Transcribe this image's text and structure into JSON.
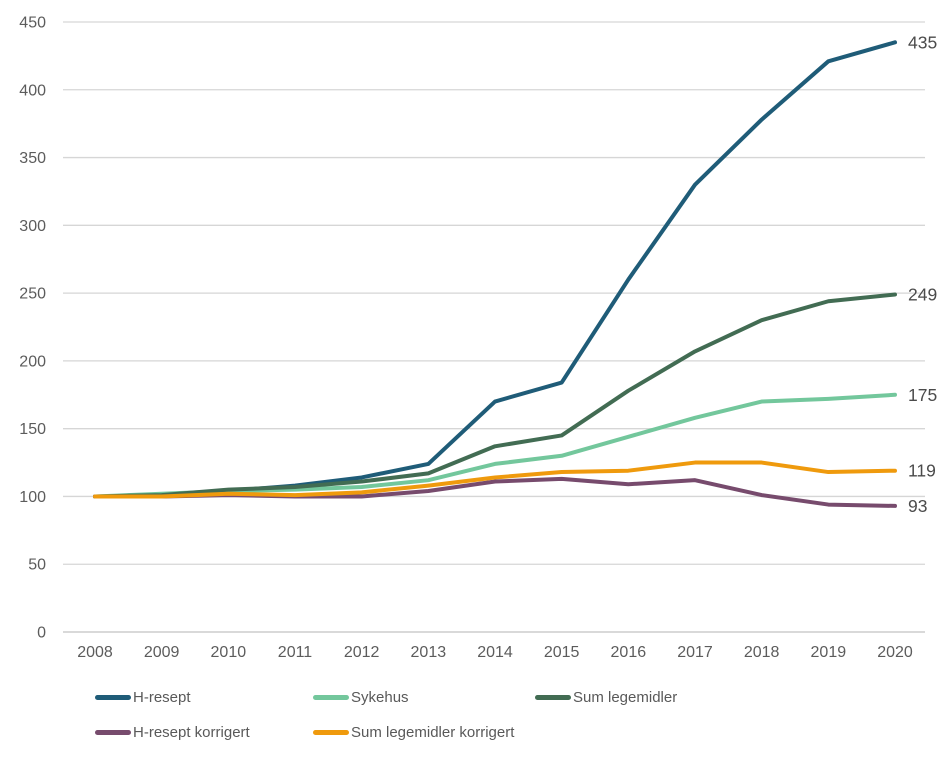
{
  "chart_data": {
    "type": "line",
    "title": "",
    "x": [
      2008,
      2009,
      2010,
      2011,
      2012,
      2013,
      2014,
      2015,
      2016,
      2017,
      2018,
      2019,
      2020
    ],
    "x_labels": [
      "2008",
      "2009",
      "2010",
      "2011",
      "2012",
      "2013",
      "2014",
      "2015",
      "2016",
      "2017",
      "2018",
      "2019",
      "2020"
    ],
    "ylim": [
      0,
      450
    ],
    "ytick_step": 50,
    "y_tick_labels": [
      "0",
      "50",
      "100",
      "150",
      "200",
      "250",
      "300",
      "350",
      "400",
      "450"
    ],
    "grid": true,
    "legend_position": "bottom",
    "series": [
      {
        "name": "H-resept",
        "color": "#1F5C78",
        "values": [
          100,
          100,
          104,
          108,
          114,
          124,
          170,
          184,
          260,
          330,
          378,
          421,
          435
        ],
        "end_label": "435"
      },
      {
        "name": "Sykehus",
        "color": "#73C79C",
        "values": [
          100,
          102,
          104,
          105,
          107,
          112,
          124,
          130,
          144,
          158,
          170,
          172,
          175
        ],
        "end_label": "175"
      },
      {
        "name": "Sum legemidler",
        "color": "#426C53",
        "values": [
          100,
          101,
          105,
          107,
          111,
          117,
          137,
          145,
          178,
          207,
          230,
          244,
          249
        ],
        "end_label": "249"
      },
      {
        "name": "H-resept korrigert",
        "color": "#774B6D",
        "values": [
          100,
          100,
          101,
          100,
          100,
          104,
          111,
          113,
          109,
          112,
          101,
          94,
          93
        ],
        "end_label": "93"
      },
      {
        "name": "Sum legemidler korrigert",
        "color": "#EF9A0D",
        "values": [
          100,
          100,
          102,
          101,
          103,
          108,
          114,
          118,
          119,
          125,
          125,
          118,
          119
        ],
        "end_label": "119"
      }
    ]
  },
  "colors": {
    "axis_text": "#5C5C5C",
    "end_label_text": "#4B4B4B",
    "gridline": "#D6D6D6",
    "axis_line": "#C2C2C2",
    "legend_text": "#595959",
    "background": "#FFFFFF"
  }
}
